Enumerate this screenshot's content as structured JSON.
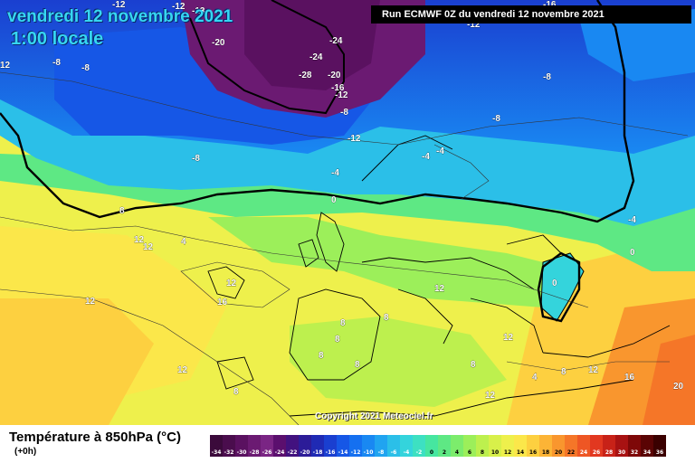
{
  "header": {
    "title": "vendredi 12 novembre 2021",
    "subtitle": "1:00 locale",
    "run": "Run ECMWF 0Z du vendredi 12 novembre 2021"
  },
  "copyright": "Copyright 2021 Meteociel.fr",
  "legend": {
    "title": "Température à 850hPa (°C)",
    "lead": "(+0h)",
    "ticks": [
      "-34",
      "-32",
      "-30",
      "-28",
      "-26",
      "-24",
      "-22",
      "-20",
      "-18",
      "-16",
      "-14",
      "-12",
      "-10",
      "-8",
      "-6",
      "-4",
      "-2",
      "0",
      "2",
      "4",
      "6",
      "8",
      "10",
      "12",
      "14",
      "16",
      "18",
      "20",
      "22",
      "24",
      "26",
      "28",
      "30",
      "32",
      "34",
      "36"
    ],
    "colors": [
      "#3b0a3b",
      "#4a0d4d",
      "#5a1160",
      "#6b1a72",
      "#7a2584",
      "#5b0f6e",
      "#42127f",
      "#2c1c98",
      "#1f2ab4",
      "#1a3fd0",
      "#1657e6",
      "#1570f0",
      "#1988f2",
      "#20a4f0",
      "#2bbfe8",
      "#34d4dc",
      "#3de0c2",
      "#46e6a0",
      "#5ee884",
      "#7cec6c",
      "#9cef5a",
      "#bdf04e",
      "#d8f04a",
      "#eef04c",
      "#fbe74a",
      "#fdd040",
      "#fcb436",
      "#f9962e",
      "#f57628",
      "#ee5624",
      "#e23820",
      "#c82218",
      "#a81212",
      "#7e0808",
      "#5a0404",
      "#3a0000"
    ],
    "text_colors_light_from": 0
  },
  "map_labels": [
    "-12",
    "-12",
    "-13",
    "-24",
    "-20",
    "-12",
    "-16",
    "12",
    "-8",
    "-28",
    "-20",
    "-24",
    "-16",
    "-12",
    "-8",
    "-8",
    "-8",
    "-12",
    "-8",
    "-4",
    "-4",
    "-4",
    "-8",
    "0",
    "8",
    "4",
    "12",
    "12",
    "12",
    "16",
    "12",
    "12",
    "8",
    "8",
    "8",
    "8",
    "8",
    "12",
    "8",
    "8",
    "12",
    "12",
    "12",
    "16",
    "8",
    "-4",
    "0",
    "0",
    "4",
    "20"
  ]
}
